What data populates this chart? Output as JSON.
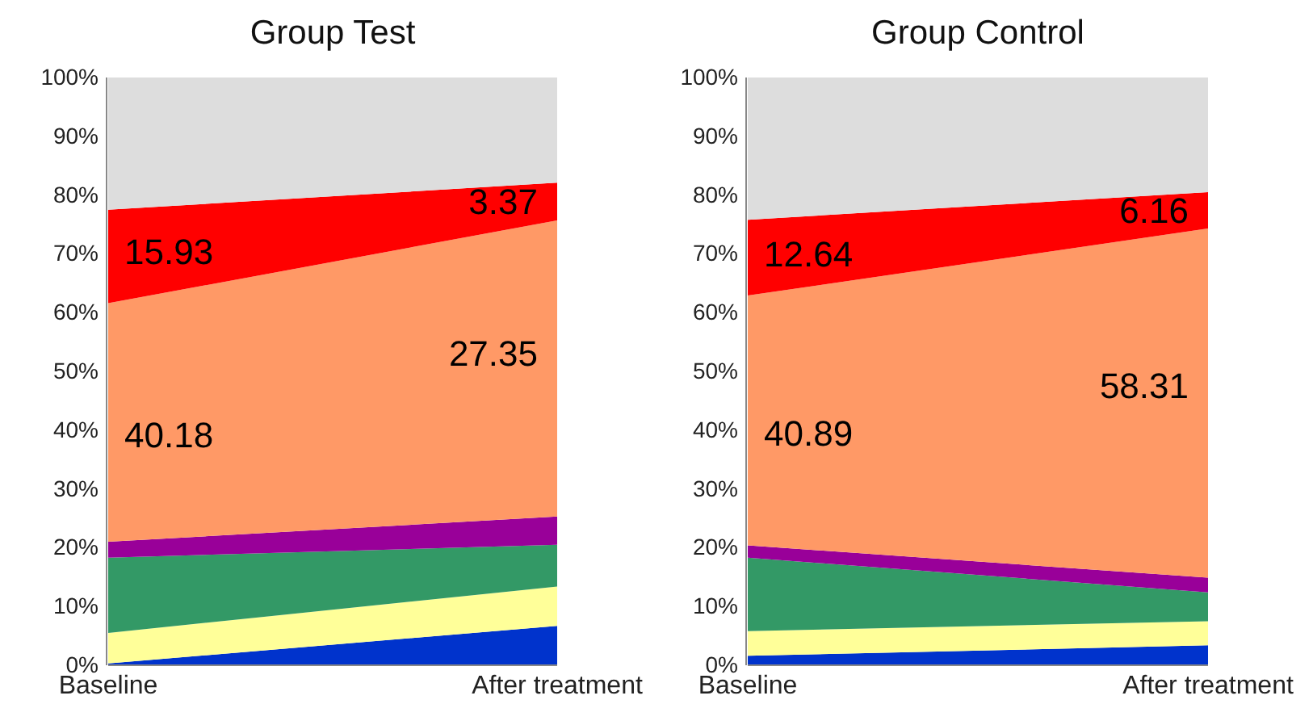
{
  "chart_data": [
    {
      "type": "area",
      "stacked": true,
      "title": "Group Test",
      "categories": [
        "Baseline",
        "After treatment"
      ],
      "ylim": [
        0,
        100
      ],
      "yticks": [
        {
          "value": 0,
          "label": "0%"
        },
        {
          "value": 10,
          "label": "10%"
        },
        {
          "value": 20,
          "label": "20%"
        },
        {
          "value": 30,
          "label": "30%"
        },
        {
          "value": 40,
          "label": "40%"
        },
        {
          "value": 50,
          "label": "50%"
        },
        {
          "value": 60,
          "label": "60%"
        },
        {
          "value": 70,
          "label": "70%"
        },
        {
          "value": 80,
          "label": "80%"
        },
        {
          "value": 90,
          "label": "90%"
        },
        {
          "value": 100,
          "label": "100%"
        }
      ],
      "series": [
        {
          "color": "#0033cc",
          "values": [
            0.3,
            6.7
          ]
        },
        {
          "color": "#ffff99",
          "values": [
            5.2,
            6.7
          ]
        },
        {
          "color": "#339966",
          "values": [
            12.8,
            7.1
          ]
        },
        {
          "color": "#990099",
          "values": [
            2.7,
            4.8
          ]
        },
        {
          "color": "#ff9966",
          "values": [
            40.6,
            50.4
          ]
        },
        {
          "color": "#ff0000",
          "values": [
            15.9,
            6.4
          ]
        },
        {
          "color": "#dddddd",
          "values": [
            22.5,
            17.9
          ]
        }
      ],
      "annotations": [
        "15.93",
        "40.18",
        "3.37",
        "27.35"
      ]
    },
    {
      "type": "area",
      "stacked": true,
      "title": "Group Control",
      "categories": [
        "Baseline",
        "After treatment"
      ],
      "ylim": [
        0,
        100
      ],
      "yticks": [
        {
          "value": 0,
          "label": "0%"
        },
        {
          "value": 10,
          "label": "10%"
        },
        {
          "value": 20,
          "label": "20%"
        },
        {
          "value": 30,
          "label": "30%"
        },
        {
          "value": 40,
          "label": "40%"
        },
        {
          "value": 50,
          "label": "50%"
        },
        {
          "value": 60,
          "label": "60%"
        },
        {
          "value": 70,
          "label": "70%"
        },
        {
          "value": 80,
          "label": "80%"
        },
        {
          "value": 90,
          "label": "90%"
        },
        {
          "value": 100,
          "label": "100%"
        }
      ],
      "series": [
        {
          "color": "#0033cc",
          "values": [
            1.6,
            3.4
          ]
        },
        {
          "color": "#ffff99",
          "values": [
            4.2,
            4.1
          ]
        },
        {
          "color": "#339966",
          "values": [
            12.5,
            4.9
          ]
        },
        {
          "color": "#990099",
          "values": [
            2.1,
            2.5
          ]
        },
        {
          "color": "#ff9966",
          "values": [
            42.5,
            59.4
          ]
        },
        {
          "color": "#ff0000",
          "values": [
            12.9,
            6.2
          ]
        },
        {
          "color": "#dddddd",
          "values": [
            24.2,
            19.5
          ]
        }
      ],
      "annotations": [
        "12.64",
        "40.89",
        "6.16",
        "58.31"
      ]
    }
  ]
}
